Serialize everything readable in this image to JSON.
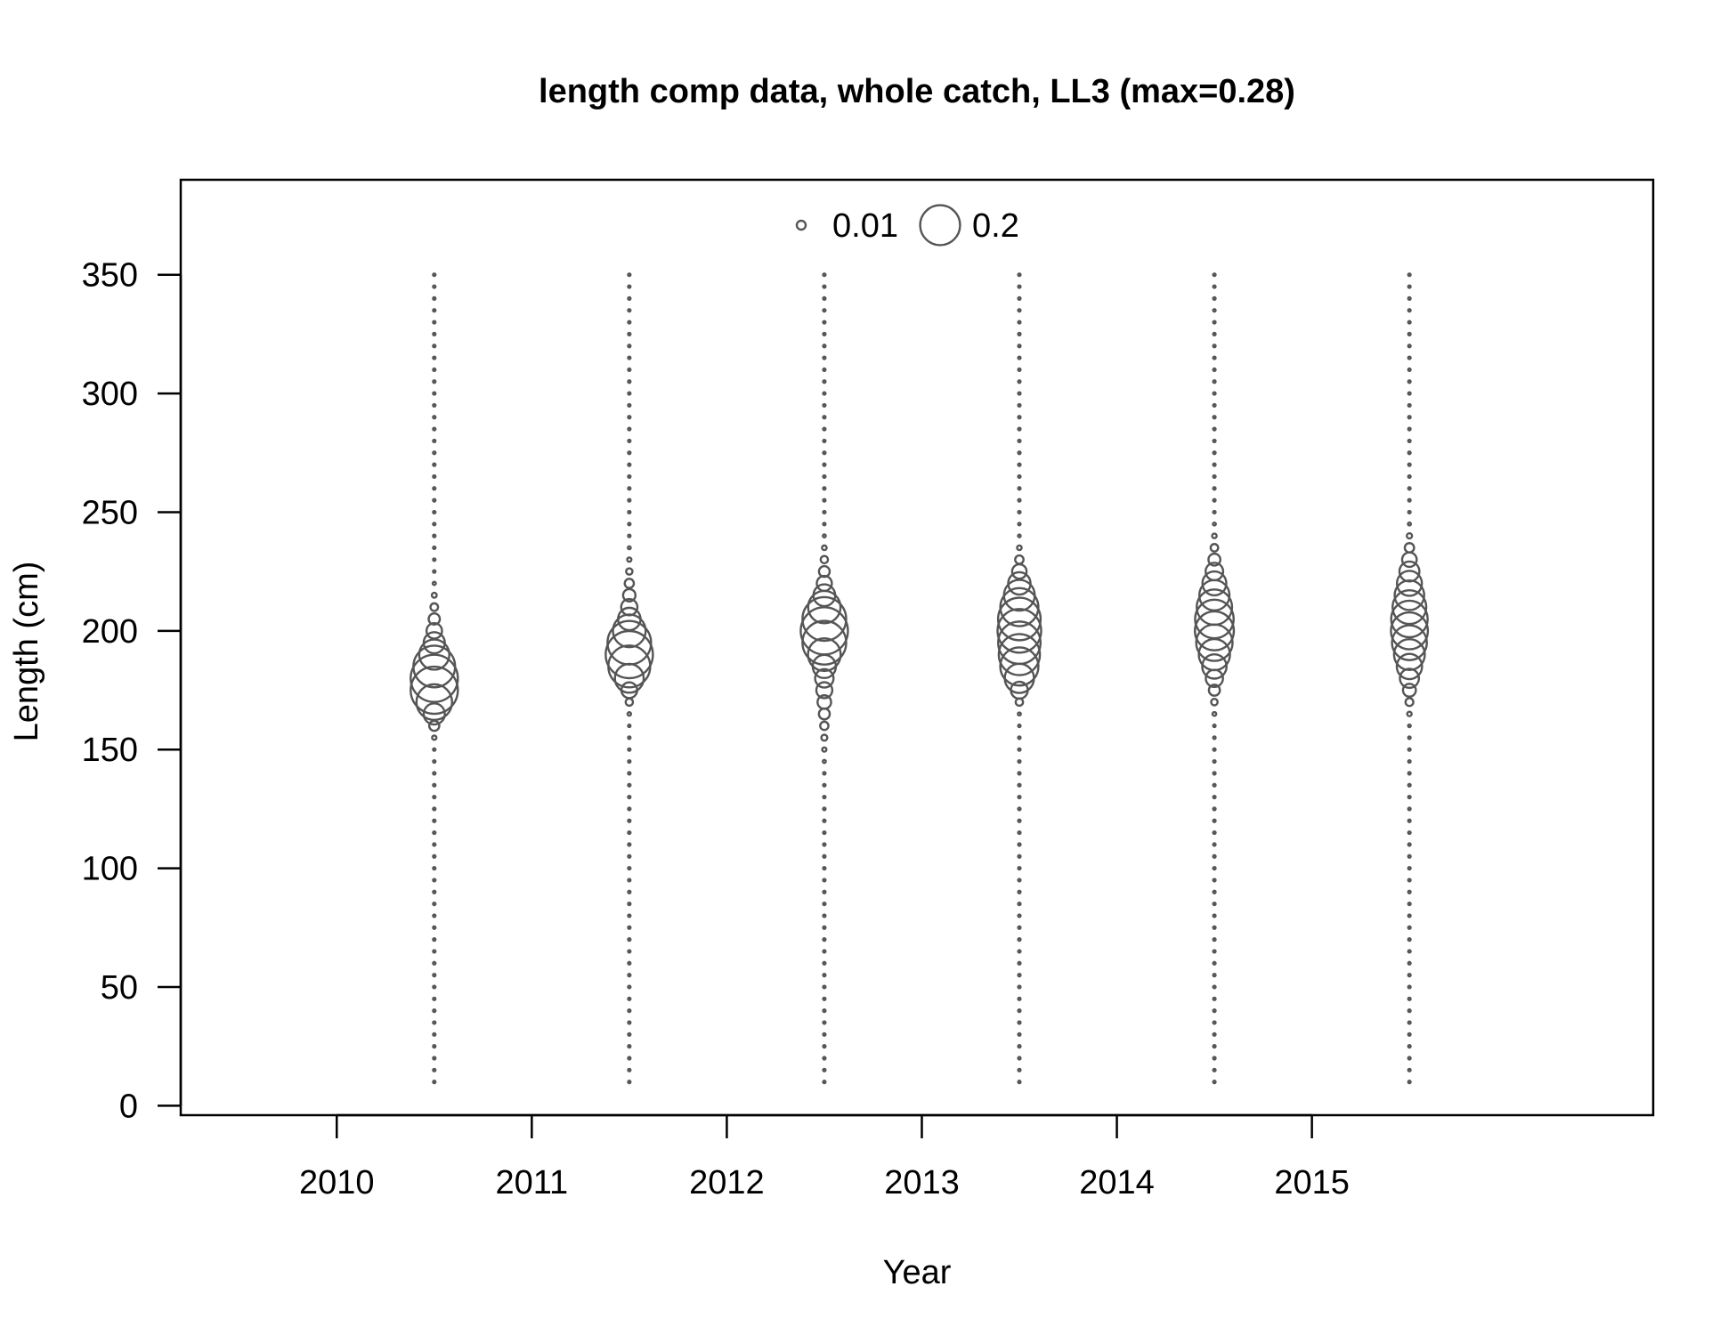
{
  "chart_data": {
    "type": "scatter",
    "subtype": "bubble",
    "title": "length comp data, whole catch, LL3 (max=0.28)",
    "xlabel": "Year",
    "ylabel": "Length (cm)",
    "xlim": [
      2009.2,
      2016.75
    ],
    "ylim": [
      -4,
      390
    ],
    "x_ticks": [
      2010,
      2011,
      2012,
      2013,
      2014,
      2015
    ],
    "x_tick_labels": [
      "2010",
      "2011",
      "2012",
      "2013",
      "2014",
      "2015"
    ],
    "y_ticks": [
      0,
      50,
      100,
      150,
      200,
      250,
      300,
      350
    ],
    "y_tick_labels": [
      "0",
      "50",
      "100",
      "150",
      "200",
      "250",
      "300",
      "350"
    ],
    "grid": false,
    "legend": {
      "placement": "top-center",
      "entries": [
        {
          "label": "0.01",
          "value": 0.01
        },
        {
          "label": "0.2",
          "value": 0.2
        }
      ]
    },
    "bin_start": 10,
    "bin_width": 5,
    "bin_end": 350,
    "max_value": 0.28,
    "series": [
      {
        "x": 2010.5,
        "peaks": [
          [
            178,
            0.28,
            7
          ],
          [
            188,
            0.05,
            11
          ]
        ]
      },
      {
        "x": 2011.5,
        "peaks": [
          [
            190,
            0.26,
            7
          ],
          [
            200,
            0.04,
            12
          ]
        ]
      },
      {
        "x": 2012.5,
        "peaks": [
          [
            200,
            0.26,
            7
          ],
          [
            185,
            0.04,
            14
          ],
          [
            212,
            0.03,
            10
          ]
        ]
      },
      {
        "x": 2013.5,
        "peaks": [
          [
            205,
            0.19,
            10
          ],
          [
            185,
            0.12,
            6
          ],
          [
            195,
            0.08,
            8
          ]
        ]
      },
      {
        "x": 2014.5,
        "peaks": [
          [
            205,
            0.15,
            12
          ],
          [
            195,
            0.06,
            10
          ]
        ]
      },
      {
        "x": 2015.5,
        "peaks": [
          [
            203,
            0.16,
            11
          ],
          [
            188,
            0.04,
            9
          ],
          [
            222,
            0.03,
            8
          ]
        ]
      }
    ]
  }
}
